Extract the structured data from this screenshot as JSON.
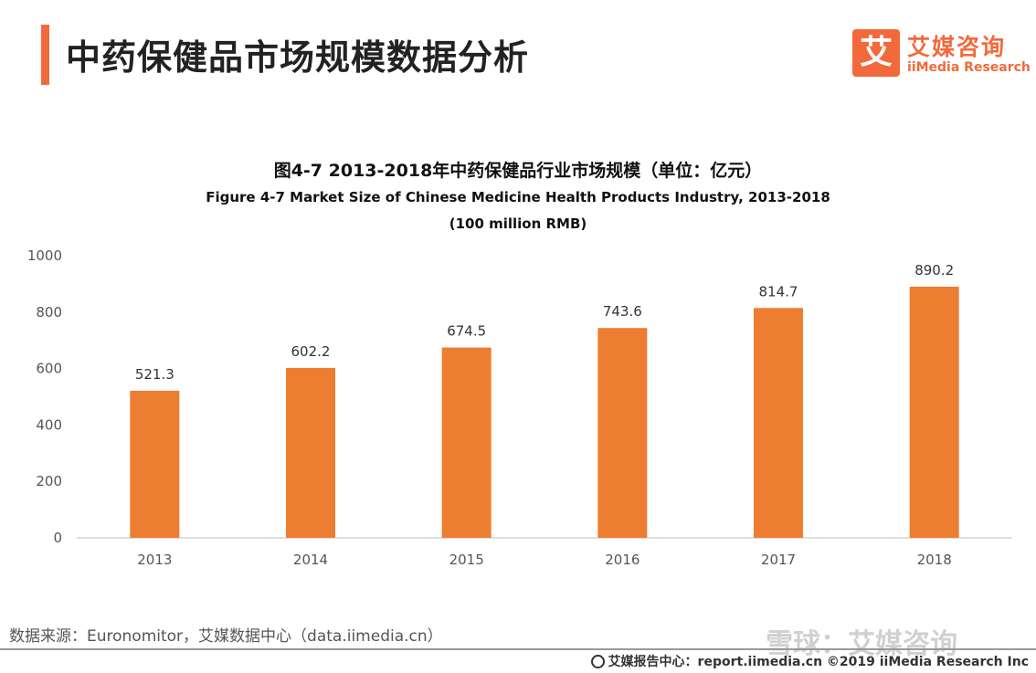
{
  "header": {
    "title": "中药保健品市场规模数据分析",
    "logo_mark": "艾",
    "logo_cn": "艾媒咨询",
    "logo_en": "iiMedia Research"
  },
  "chart_data": {
    "type": "bar",
    "title": "图4-7 2013-2018年中药保健品行业市场规模（单位：亿元）",
    "subtitle": "Figure 4-7 Market Size of Chinese Medicine Health Products Industry, 2013-2018",
    "subtitle2": "(100 million RMB)",
    "categories": [
      "2013",
      "2014",
      "2015",
      "2016",
      "2017",
      "2018"
    ],
    "values": [
      521.3,
      602.2,
      674.5,
      743.6,
      814.7,
      890.2
    ],
    "value_labels": [
      "521.3",
      "602.2",
      "674.5",
      "743.6",
      "814.7",
      "890.2"
    ],
    "ylim": [
      0,
      1000
    ],
    "yticks": [
      "0",
      "200",
      "400",
      "600",
      "800",
      "1000"
    ],
    "xlabel": "",
    "ylabel": "",
    "grid": false,
    "bar_color": "#ed7d31"
  },
  "footer": {
    "source": "数据来源：Euronomitor，艾媒数据中心（data.iimedia.cn）",
    "copyright": "艾媒报告中心：report.iimedia.cn ©2019 iiMedia Research Inc",
    "watermark": "雪球：艾媒咨询"
  },
  "colors": {
    "accent": "#f26a3b",
    "bar": "#ed7d31"
  }
}
